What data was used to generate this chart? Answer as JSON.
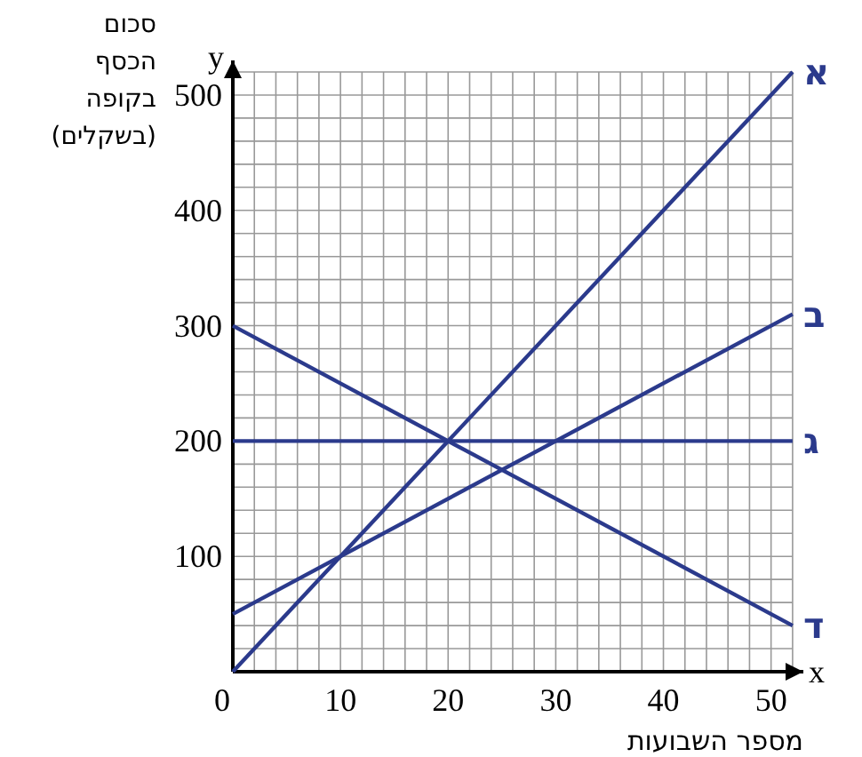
{
  "chart_data": {
    "type": "line",
    "xlabel": "מספר השבועות",
    "ylabel": "סכום הכסף בקופה (בשקלים)",
    "xlim": [
      0,
      53
    ],
    "ylim": [
      0,
      530
    ],
    "xticks": [
      0,
      {
        "value": 2,
        "label": null
      },
      {
        "value": 4,
        "label": null
      },
      {
        "value": 6,
        "label": null
      },
      {
        "value": 8,
        "label": null
      },
      10,
      {
        "value": 12,
        "label": null
      },
      {
        "value": 14,
        "label": null
      },
      {
        "value": 16,
        "label": null
      },
      {
        "value": 18,
        "label": null
      },
      20,
      {
        "value": 22,
        "label": null
      },
      {
        "value": 24,
        "label": null
      },
      {
        "value": 26,
        "label": null
      },
      {
        "value": 28,
        "label": null
      },
      30,
      {
        "value": 32,
        "label": null
      },
      {
        "value": 34,
        "label": null
      },
      {
        "value": 36,
        "label": null
      },
      {
        "value": 38,
        "label": null
      },
      40,
      {
        "value": 42,
        "label": null
      },
      {
        "value": 44,
        "label": null
      },
      {
        "value": 46,
        "label": null
      },
      {
        "value": 48,
        "label": null
      },
      50,
      {
        "value": 52,
        "label": null
      }
    ],
    "yticks": [
      {
        "value": 20,
        "label": null
      },
      {
        "value": 40,
        "label": null
      },
      {
        "value": 60,
        "label": null
      },
      {
        "value": 80,
        "label": null
      },
      100,
      {
        "value": 120,
        "label": null
      },
      {
        "value": 140,
        "label": null
      },
      {
        "value": 160,
        "label": null
      },
      {
        "value": 180,
        "label": null
      },
      200,
      {
        "value": 220,
        "label": null
      },
      {
        "value": 240,
        "label": null
      },
      {
        "value": 260,
        "label": null
      },
      {
        "value": 280,
        "label": null
      },
      300,
      {
        "value": 320,
        "label": null
      },
      {
        "value": 340,
        "label": null
      },
      {
        "value": 360,
        "label": null
      },
      {
        "value": 380,
        "label": null
      },
      400,
      {
        "value": 420,
        "label": null
      },
      {
        "value": 440,
        "label": null
      },
      {
        "value": 460,
        "label": null
      },
      {
        "value": 480,
        "label": null
      },
      500,
      {
        "value": 520,
        "label": null
      }
    ],
    "grid": true,
    "annotations": [
      "x",
      "y"
    ],
    "x": [
      0,
      52
    ],
    "series": [
      {
        "name": "א",
        "color": "#2b3a8c",
        "values": [
          0,
          520
        ]
      },
      {
        "name": "ב",
        "color": "#2b3a8c",
        "values": [
          50,
          310
        ]
      },
      {
        "name": "ג",
        "color": "#2b3a8c",
        "values": [
          200,
          200
        ]
      },
      {
        "name": "ד",
        "color": "#2b3a8c",
        "values": [
          300,
          40
        ]
      }
    ]
  }
}
